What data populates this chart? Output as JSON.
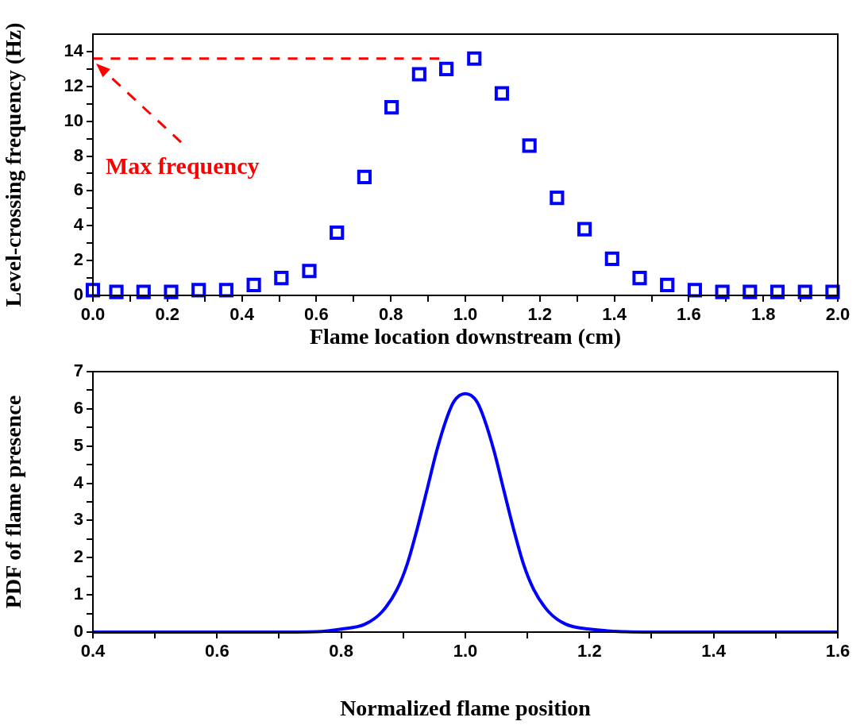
{
  "chart_data": [
    {
      "type": "scatter",
      "xlabel": "Flame location downstream (cm)",
      "ylabel": "Level-crossing frequency (Hz)",
      "xlim": [
        0,
        2.0
      ],
      "xticks": [
        {
          "value": 0,
          "label": "0.0"
        },
        {
          "value": 0.1,
          "label": null
        },
        {
          "value": 0.2,
          "label": "0.2"
        },
        {
          "value": 0.3,
          "label": null
        },
        {
          "value": 0.4,
          "label": "0.4"
        },
        {
          "value": 0.5,
          "label": null
        },
        {
          "value": 0.6,
          "label": "0.6"
        },
        {
          "value": 0.7,
          "label": null
        },
        {
          "value": 0.8,
          "label": "0.8"
        },
        {
          "value": 0.9,
          "label": null
        },
        {
          "value": 1.0,
          "label": "1.0"
        },
        {
          "value": 1.1,
          "label": null
        },
        {
          "value": 1.2,
          "label": "1.2"
        },
        {
          "value": 1.3,
          "label": null
        },
        {
          "value": 1.4,
          "label": "1.4"
        },
        {
          "value": 1.5,
          "label": null
        },
        {
          "value": 1.6,
          "label": "1.6"
        },
        {
          "value": 1.7,
          "label": null
        },
        {
          "value": 1.8,
          "label": "1.8"
        },
        {
          "value": 1.9,
          "label": null
        },
        {
          "value": 2.0,
          "label": "2.0"
        }
      ],
      "ylim": [
        0,
        15
      ],
      "yticks": [
        0,
        {
          "value": 1,
          "label": null
        },
        2,
        {
          "value": 3,
          "label": null
        },
        4,
        {
          "value": 5,
          "label": null
        },
        6,
        {
          "value": 7,
          "label": null
        },
        8,
        {
          "value": 9,
          "label": null
        },
        10,
        {
          "value": 11,
          "label": null
        },
        12,
        {
          "value": 13,
          "label": null
        },
        14
      ],
      "grid": false,
      "legend": false,
      "series": [
        {
          "marker": "square",
          "color": "#0000ff",
          "x": [
            0,
            0.063,
            0.136,
            0.21,
            0.284,
            0.358,
            0.432,
            0.506,
            0.581,
            0.655,
            0.729,
            0.802,
            0.876,
            0.949,
            1.024,
            1.098,
            1.172,
            1.246,
            1.32,
            1.394,
            1.468,
            1.542,
            1.616,
            1.69,
            1.764,
            1.838,
            1.912,
            1.986
          ],
          "values": [
            0.3,
            0.2,
            0.2,
            0.2,
            0.3,
            0.3,
            0.6,
            1.0,
            1.4,
            3.6,
            6.8,
            10.8,
            12.7,
            13.0,
            13.6,
            11.6,
            8.6,
            5.6,
            3.8,
            2.1,
            1.0,
            0.6,
            0.3,
            0.2,
            0.2,
            0.2,
            0.2,
            0.2
          ]
        },
        {
          "type": "line",
          "marker": "none",
          "line_style": "dashed",
          "color": "#ff0000",
          "x": [
            0,
            0.93
          ],
          "values": [
            13.6,
            13.6
          ]
        }
      ],
      "annotations": [
        "Max frequency"
      ]
    },
    {
      "type": "line",
      "xlabel": "Normalized flame position",
      "ylabel": "PDF of flame presence",
      "xlim": [
        0.4,
        1.6
      ],
      "xticks": [
        0.4,
        {
          "value": 0.5,
          "label": null
        },
        0.6,
        {
          "value": 0.7,
          "label": null
        },
        0.8,
        {
          "value": 0.9,
          "label": null
        },
        {
          "value": 1.0,
          "label": "1.0"
        },
        {
          "value": 1.1,
          "label": null
        },
        1.2,
        {
          "value": 1.3,
          "label": null
        },
        1.4,
        {
          "value": 1.5,
          "label": null
        },
        1.6
      ],
      "ylim": [
        0,
        7
      ],
      "yticks": [
        0,
        {
          "value": 0.5,
          "label": null
        },
        1,
        {
          "value": 1.5,
          "label": null
        },
        2,
        {
          "value": 2.5,
          "label": null
        },
        3,
        {
          "value": 3.5,
          "label": null
        },
        4,
        {
          "value": 4.5,
          "label": null
        },
        5,
        {
          "value": 5.5,
          "label": null
        },
        6,
        {
          "value": 6.5,
          "label": null
        },
        7
      ],
      "grid": false,
      "legend": false,
      "marker": "none",
      "line_style": "solid",
      "series": [
        {
          "color": "#0000ff",
          "x": [
            0.4,
            0.6,
            0.7,
            0.76,
            0.8,
            0.838,
            0.866,
            0.89,
            0.906,
            0.922,
            0.938,
            0.954,
            0.97,
            0.982,
            1.0,
            1.018,
            1.03,
            1.046,
            1.062,
            1.078,
            1.094,
            1.11,
            1.134,
            1.162,
            1.2,
            1.258,
            1.3,
            1.4,
            1.6
          ],
          "values": [
            0,
            0,
            0,
            0.01,
            0.08,
            0.21,
            0.55,
            1.15,
            1.81,
            2.75,
            3.81,
            4.88,
            5.75,
            6.21,
            6.41,
            6.21,
            5.75,
            4.88,
            3.81,
            2.75,
            1.81,
            1.15,
            0.55,
            0.21,
            0.08,
            0.01,
            0,
            0,
            0
          ]
        }
      ]
    }
  ]
}
